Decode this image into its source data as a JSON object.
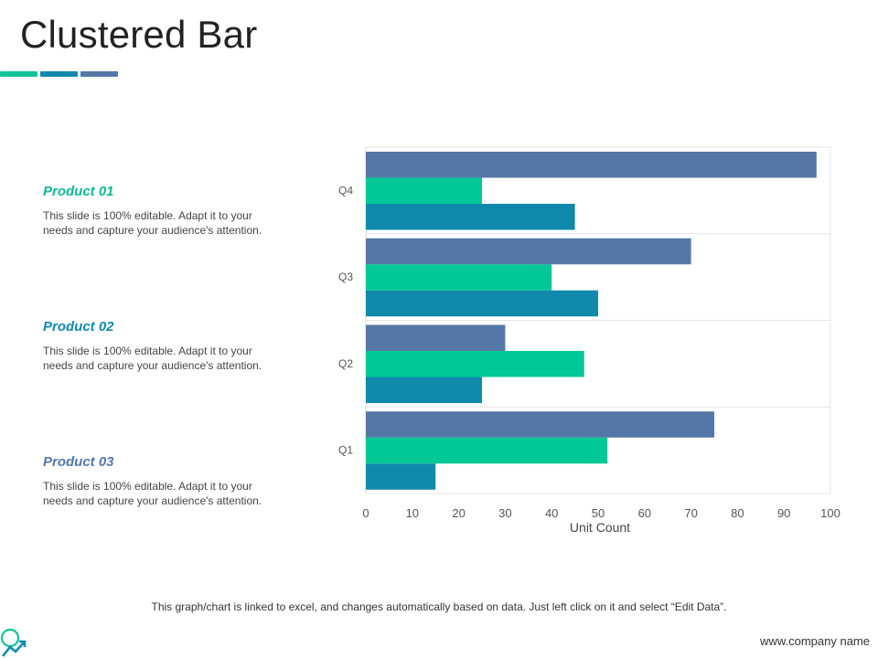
{
  "slide": {
    "title": "Clustered Bar",
    "accent_colors": [
      "#0fc39a",
      "#1189ac",
      "#5477a7"
    ]
  },
  "products": [
    {
      "title": "Product 01",
      "color": "#0fb895",
      "desc_line1": "This slide is 100% editable. Adapt it to your",
      "desc_line2": "needs and capture your audience's attention."
    },
    {
      "title": "Product 02",
      "color": "#1189ac",
      "desc_line1": "This slide is 100% editable. Adapt it to your",
      "desc_line2": "needs and capture your audience's attention."
    },
    {
      "title": "Product 03",
      "color": "#5477a7",
      "desc_line1": "This slide is 100% editable. Adapt it to your",
      "desc_line2": "needs and capture your audience's attention."
    }
  ],
  "chart_data": {
    "type": "bar",
    "orientation": "horizontal",
    "categories": [
      "Q1",
      "Q2",
      "Q3",
      "Q4"
    ],
    "series": [
      {
        "values": [
          15,
          25,
          50,
          45
        ],
        "color": "#1189ac"
      },
      {
        "values": [
          52,
          47,
          40,
          25
        ],
        "color": "#00c896"
      },
      {
        "values": [
          75,
          30,
          70,
          97
        ],
        "color": "#5477a7"
      }
    ],
    "xlabel": "Unit Count",
    "ylabel": "",
    "xlim": [
      0,
      100
    ],
    "xticks": [
      0,
      10,
      20,
      30,
      40,
      50,
      60,
      70,
      80,
      90,
      100
    ],
    "grid": true,
    "legend": "none"
  },
  "footer": {
    "note": "This graph/chart is linked to excel, and changes automatically based on data. Just left click on it and select “Edit Data”.",
    "url": "www.company name"
  },
  "icons": {
    "logo": "search-growth-icon"
  }
}
